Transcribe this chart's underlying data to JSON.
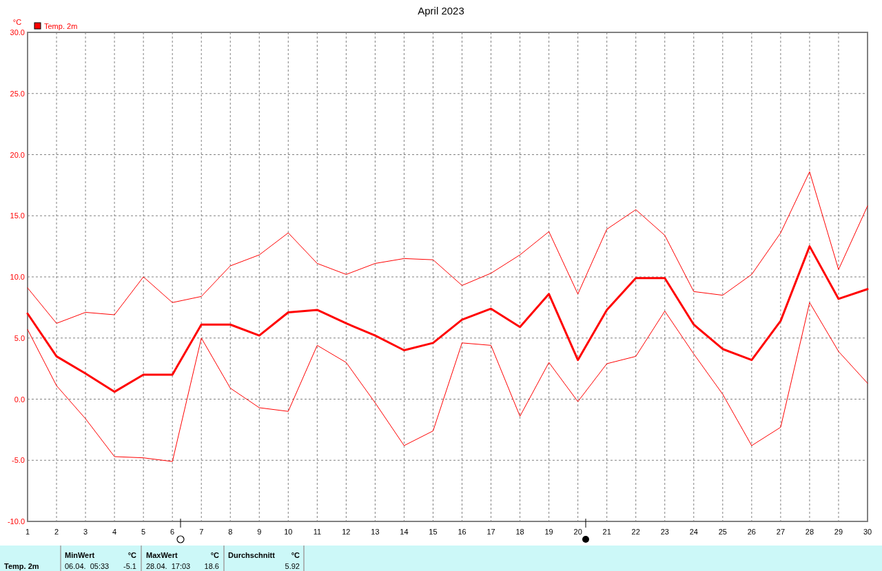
{
  "chart_data": {
    "type": "line",
    "title": "April 2023",
    "ylabel": "°C",
    "x": [
      1,
      2,
      3,
      4,
      5,
      6,
      7,
      8,
      9,
      10,
      11,
      12,
      13,
      14,
      15,
      16,
      17,
      18,
      19,
      20,
      21,
      22,
      23,
      24,
      25,
      26,
      27,
      28,
      29,
      30
    ],
    "xlim": [
      1,
      30
    ],
    "xticks": [
      1,
      2,
      3,
      4,
      5,
      6,
      7,
      8,
      9,
      10,
      11,
      12,
      13,
      14,
      15,
      16,
      17,
      18,
      19,
      20,
      21,
      22,
      23,
      24,
      25,
      26,
      27,
      28,
      29,
      30
    ],
    "ylim": [
      -10,
      30
    ],
    "yticks": [
      {
        "value": -10,
        "label": "-10.0"
      },
      {
        "value": -5,
        "label": "-5.0"
      },
      {
        "value": 0,
        "label": "0.0"
      },
      {
        "value": 5,
        "label": "5.0"
      },
      {
        "value": 10,
        "label": "10.0"
      },
      {
        "value": 15,
        "label": "15.0"
      },
      {
        "value": 20,
        "label": "20.0"
      },
      {
        "value": 25,
        "label": "25.0"
      },
      {
        "value": 30,
        "label": "30.0"
      }
    ],
    "grid": true,
    "legend": "top left",
    "marker": "none",
    "line_style": "solid",
    "series": [
      {
        "color": "#ff0000",
        "values": [
          9.1,
          6.2,
          7.1,
          6.9,
          10.0,
          7.9,
          8.4,
          10.9,
          11.8,
          13.6,
          11.1,
          10.2,
          11.1,
          11.5,
          11.4,
          9.3,
          10.3,
          11.8,
          13.7,
          8.6,
          13.9,
          15.5,
          13.4,
          8.8,
          8.5,
          10.2,
          13.6,
          18.6,
          10.6,
          15.8
        ]
      },
      {
        "name": "Temp. 2m",
        "color": "#ff0000",
        "values": [
          7.0,
          3.5,
          2.1,
          0.6,
          2.0,
          2.0,
          6.1,
          6.1,
          5.2,
          7.1,
          7.3,
          6.2,
          5.2,
          4.0,
          4.6,
          6.5,
          7.4,
          5.9,
          8.6,
          3.2,
          7.3,
          9.9,
          9.9,
          6.1,
          4.1,
          3.2,
          6.4,
          12.5,
          8.2,
          9.0
        ]
      },
      {
        "color": "#ff0000",
        "values": [
          5.7,
          1.1,
          -1.6,
          -4.7,
          -4.8,
          -5.1,
          5.0,
          0.9,
          -0.7,
          -1.0,
          4.4,
          3.0,
          -0.3,
          -3.8,
          -2.6,
          4.6,
          4.4,
          -1.4,
          3.0,
          -0.2,
          2.9,
          3.5,
          7.2,
          3.7,
          0.4,
          -3.8,
          -2.3,
          7.9,
          3.9,
          1.3
        ]
      }
    ],
    "annotations": [
      "Temp. 2m",
      "MinWert",
      "°C",
      "06.04.  05:33",
      "-5.1",
      "MaxWert",
      "°C",
      "28.04.  17:03",
      "18.6",
      "Durchschnitt",
      "°C",
      "5.92"
    ]
  }
}
